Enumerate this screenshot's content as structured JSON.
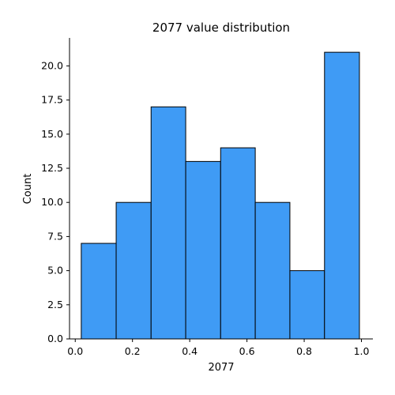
{
  "chart_data": {
    "type": "bar",
    "title": "2077 value distribution",
    "xlabel": "2077",
    "ylabel": "Count",
    "bins": [
      {
        "x0": 0.021,
        "x1": 0.143,
        "count": 7
      },
      {
        "x0": 0.143,
        "x1": 0.265,
        "count": 10
      },
      {
        "x0": 0.265,
        "x1": 0.386,
        "count": 17
      },
      {
        "x0": 0.386,
        "x1": 0.508,
        "count": 13
      },
      {
        "x0": 0.508,
        "x1": 0.629,
        "count": 14
      },
      {
        "x0": 0.629,
        "x1": 0.75,
        "count": 10
      },
      {
        "x0": 0.75,
        "x1": 0.871,
        "count": 5
      },
      {
        "x0": 0.871,
        "x1": 0.993,
        "count": 21
      }
    ],
    "xlim": [
      -0.02,
      1.04
    ],
    "ylim": [
      0,
      22.05
    ],
    "xticks": [
      "0.0",
      "0.2",
      "0.4",
      "0.6",
      "0.8",
      "1.0"
    ],
    "yticks": [
      "0.0",
      "2.5",
      "5.0",
      "7.5",
      "10.0",
      "12.5",
      "15.0",
      "17.5",
      "20.0"
    ],
    "grid": false,
    "colors": {
      "bar_fill": "#3f9bf5",
      "bar_edge": "#000000"
    }
  }
}
